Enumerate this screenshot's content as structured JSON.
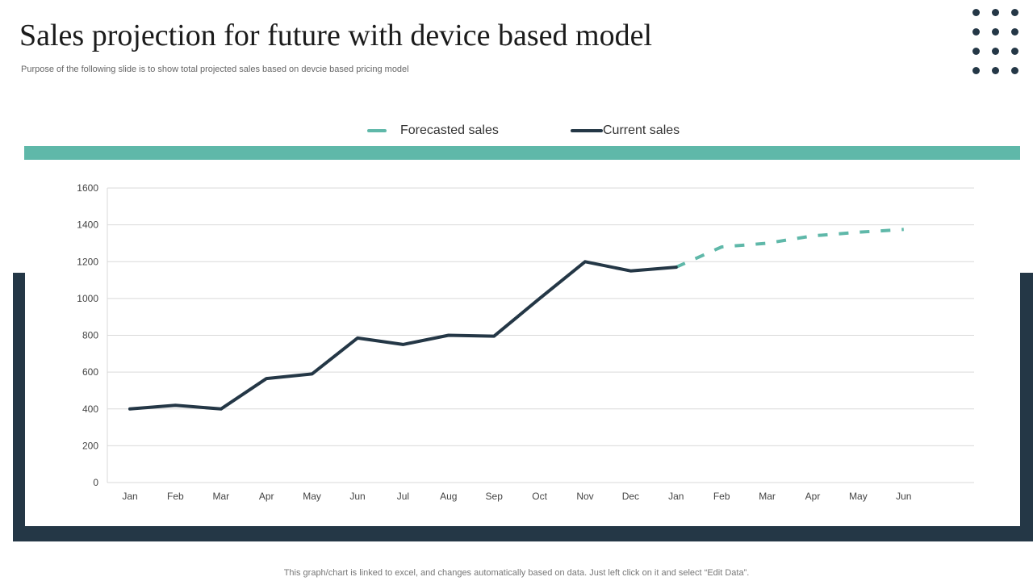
{
  "header": {
    "title": "Sales projection for future with device based model",
    "subtitle": "Purpose of the following slide is to show total projected sales based on devcie based pricing model"
  },
  "footer": {
    "note": "This graph/chart is linked to excel,  and changes automatically based on data. Just left click on it and select “Edit Data”."
  },
  "colors": {
    "dark": "#243746",
    "accent": "#5fb8a9",
    "grid": "#d9d9d9"
  },
  "chart_data": {
    "type": "line",
    "title": "",
    "xlabel": "",
    "ylabel": "",
    "ylim": [
      0,
      1600
    ],
    "yticks": [
      0,
      200,
      400,
      600,
      800,
      1000,
      1200,
      1400,
      1600
    ],
    "grid": true,
    "legend_position": "top-center",
    "categories": [
      "Jan",
      "Feb",
      "Mar",
      "Apr",
      "May",
      "Jun",
      "Jul",
      "Aug",
      "Sep",
      "Oct",
      "Nov",
      "Dec",
      "Jan",
      "Feb",
      "Mar",
      "Apr",
      "May",
      "Jun"
    ],
    "series": [
      {
        "name": "Forecasted sales",
        "style": "dashed",
        "color": "#5fb8a9",
        "values": [
          null,
          null,
          null,
          null,
          null,
          null,
          null,
          null,
          null,
          null,
          null,
          null,
          1170,
          1280,
          1300,
          1340,
          1360,
          1375
        ]
      },
      {
        "name": "Current sales",
        "style": "solid",
        "color": "#243746",
        "values": [
          400,
          420,
          400,
          565,
          590,
          785,
          750,
          800,
          795,
          1000,
          1200,
          1150,
          1170,
          null,
          null,
          null,
          null,
          null
        ]
      }
    ]
  }
}
